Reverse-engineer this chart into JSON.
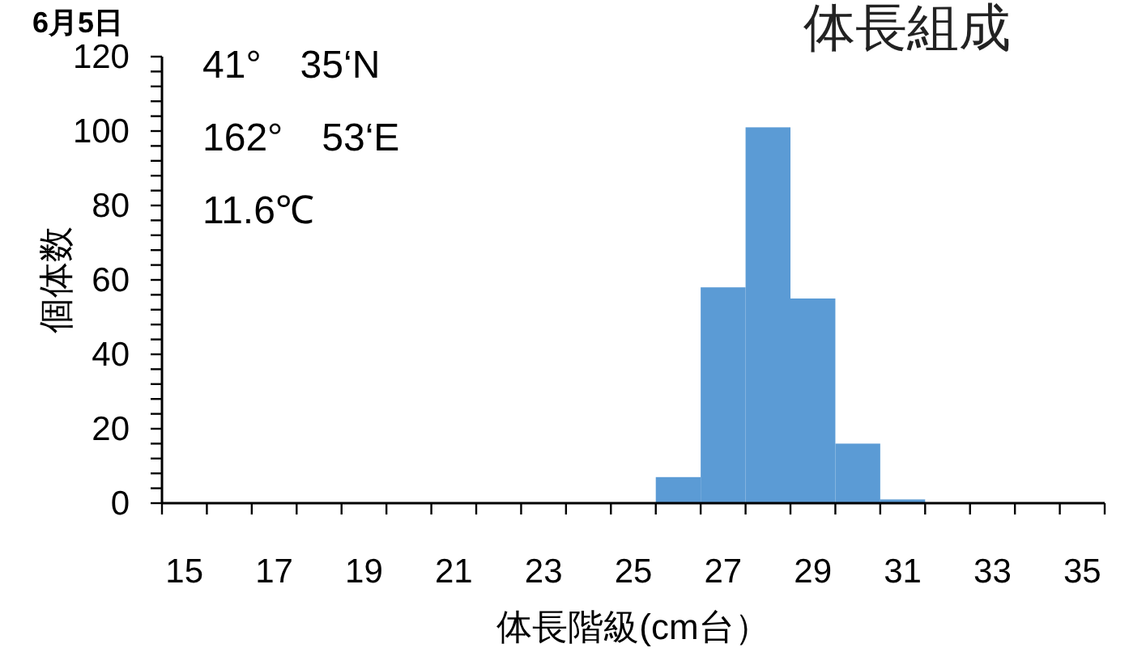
{
  "chart_data": {
    "type": "bar",
    "title": "体長組成",
    "xlabel": "体長階級(cm台）",
    "ylabel": "個体数",
    "annotations": [
      "6月5日",
      "41°　35‘N",
      "162°　53‘E",
      "11.6℃"
    ],
    "categories": [
      "15",
      null,
      "17",
      null,
      "19",
      null,
      "21",
      null,
      "23",
      null,
      "25",
      null,
      "27",
      null,
      "29",
      null,
      "31",
      null,
      "33",
      null,
      "35"
    ],
    "values": [
      0,
      0,
      0,
      0,
      0,
      0,
      0,
      0,
      0,
      0,
      0,
      7,
      58,
      101,
      55,
      16,
      1,
      0,
      0,
      0,
      0
    ],
    "color": "#5b9bd5",
    "ylim": [
      0,
      120
    ],
    "yticks": [
      0,
      {
        "value": 4,
        "label": null
      },
      {
        "value": 8,
        "label": null
      },
      {
        "value": 12,
        "label": null
      },
      {
        "value": 16,
        "label": null
      },
      20,
      {
        "value": 24,
        "label": null
      },
      {
        "value": 28,
        "label": null
      },
      {
        "value": 32,
        "label": null
      },
      {
        "value": 36,
        "label": null
      },
      40,
      {
        "value": 44,
        "label": null
      },
      {
        "value": 48,
        "label": null
      },
      {
        "value": 52,
        "label": null
      },
      {
        "value": 56,
        "label": null
      },
      60,
      {
        "value": 64,
        "label": null
      },
      {
        "value": 68,
        "label": null
      },
      {
        "value": 72,
        "label": null
      },
      {
        "value": 76,
        "label": null
      },
      80,
      {
        "value": 84,
        "label": null
      },
      {
        "value": 88,
        "label": null
      },
      {
        "value": 92,
        "label": null
      },
      {
        "value": 96,
        "label": null
      },
      100,
      {
        "value": 104,
        "label": null
      },
      {
        "value": 108,
        "label": null
      },
      {
        "value": 112,
        "label": null
      },
      {
        "value": 116,
        "label": null
      },
      120
    ],
    "grid": false
  }
}
